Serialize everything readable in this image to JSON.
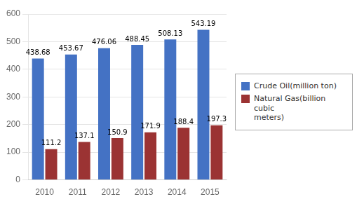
{
  "chart_data": {
    "type": "bar",
    "categories": [
      "2010",
      "2011",
      "2012",
      "2013",
      "2014",
      "2015"
    ],
    "series": [
      {
        "name": "Crude Oil(million ton)",
        "color": "#4472C4",
        "values": [
          438.68,
          453.67,
          476.06,
          488.45,
          508.13,
          543.19
        ]
      },
      {
        "name": "Natural Gas(billion cubic\nmeters)",
        "color": "#9B3333",
        "values": [
          111.2,
          137.1,
          150.9,
          171.9,
          188.4,
          197.3
        ]
      }
    ],
    "ylim": [
      0,
      600
    ],
    "yticks": [
      0,
      100,
      200,
      300,
      400,
      500,
      600
    ],
    "grid": true,
    "legend": "right",
    "data_labels": true
  }
}
